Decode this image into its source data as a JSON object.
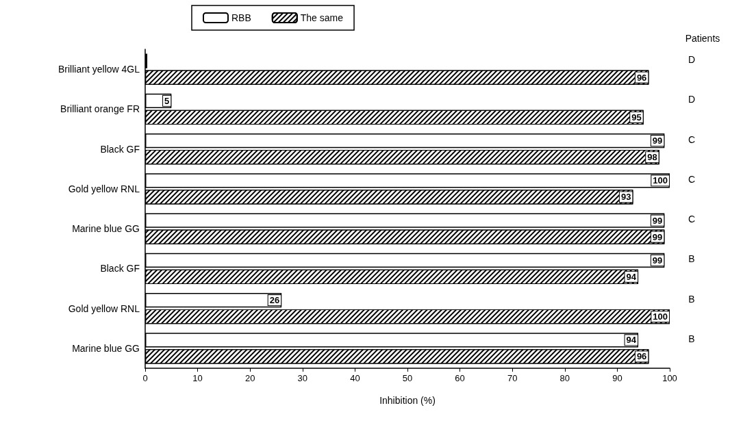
{
  "chart_data": {
    "type": "bar",
    "orientation": "horizontal",
    "xlabel": "Inhibition (%)",
    "categories": [
      "Brilliant yellow 4GL",
      "Brilliant orange FR",
      "Black GF",
      "Gold yellow RNL",
      "Marine blue GG",
      "Black GF",
      "Gold yellow RNL",
      "Marine blue GG"
    ],
    "series": [
      {
        "name": "RBB",
        "color": "#ffffff",
        "values": [
          0.4,
          5,
          99,
          100,
          99,
          99,
          26,
          94
        ],
        "value_labels": [
          null,
          "5",
          "99",
          "100",
          "99",
          "99",
          "26",
          "94"
        ]
      },
      {
        "name": "The same",
        "color": "#000000",
        "values": [
          96,
          95,
          98,
          93,
          99,
          94,
          100,
          96
        ],
        "value_labels": [
          "96",
          "95",
          "98",
          "93",
          "99",
          "94",
          "100",
          "96"
        ]
      }
    ],
    "xlim": [
      0,
      100
    ],
    "xticks": [
      0,
      10,
      20,
      30,
      40,
      50,
      60,
      70,
      80,
      90,
      100
    ],
    "grid": false,
    "legend": "top",
    "annotations": [
      "Patients",
      "D",
      "D",
      "C",
      "C",
      "C",
      "B",
      "B",
      "B"
    ]
  }
}
